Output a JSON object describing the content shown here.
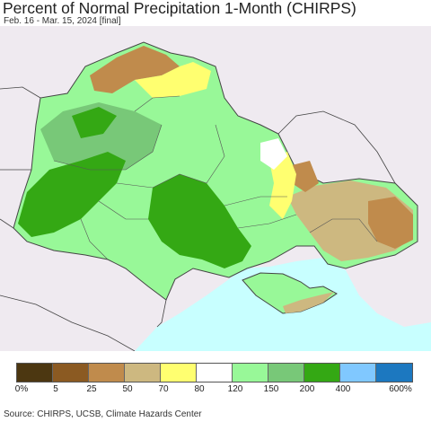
{
  "header": {
    "title": "Percent of Normal Precipitation 1-Month (CHIRPS)",
    "subtitle": "Feb. 16 - Mar. 15, 2024 [final]"
  },
  "map": {
    "colors": {
      "background_land": "#efeaf0",
      "sea": "#c8ffff",
      "borders": "#444444"
    }
  },
  "legend": {
    "colors": [
      "#4c3711",
      "#8b5a22",
      "#c08b4c",
      "#cdb880",
      "#ffff70",
      "#ffffff",
      "#98f898",
      "#78c878",
      "#34a814",
      "#80c8ff",
      "#1c78c0"
    ],
    "labels": [
      "0%",
      "5",
      "25",
      "50",
      "70",
      "80",
      "120",
      "150",
      "200",
      "400",
      "600%"
    ]
  },
  "footer": {
    "source": "Source: CHIRPS, UCSB, Climate Hazards Center"
  }
}
